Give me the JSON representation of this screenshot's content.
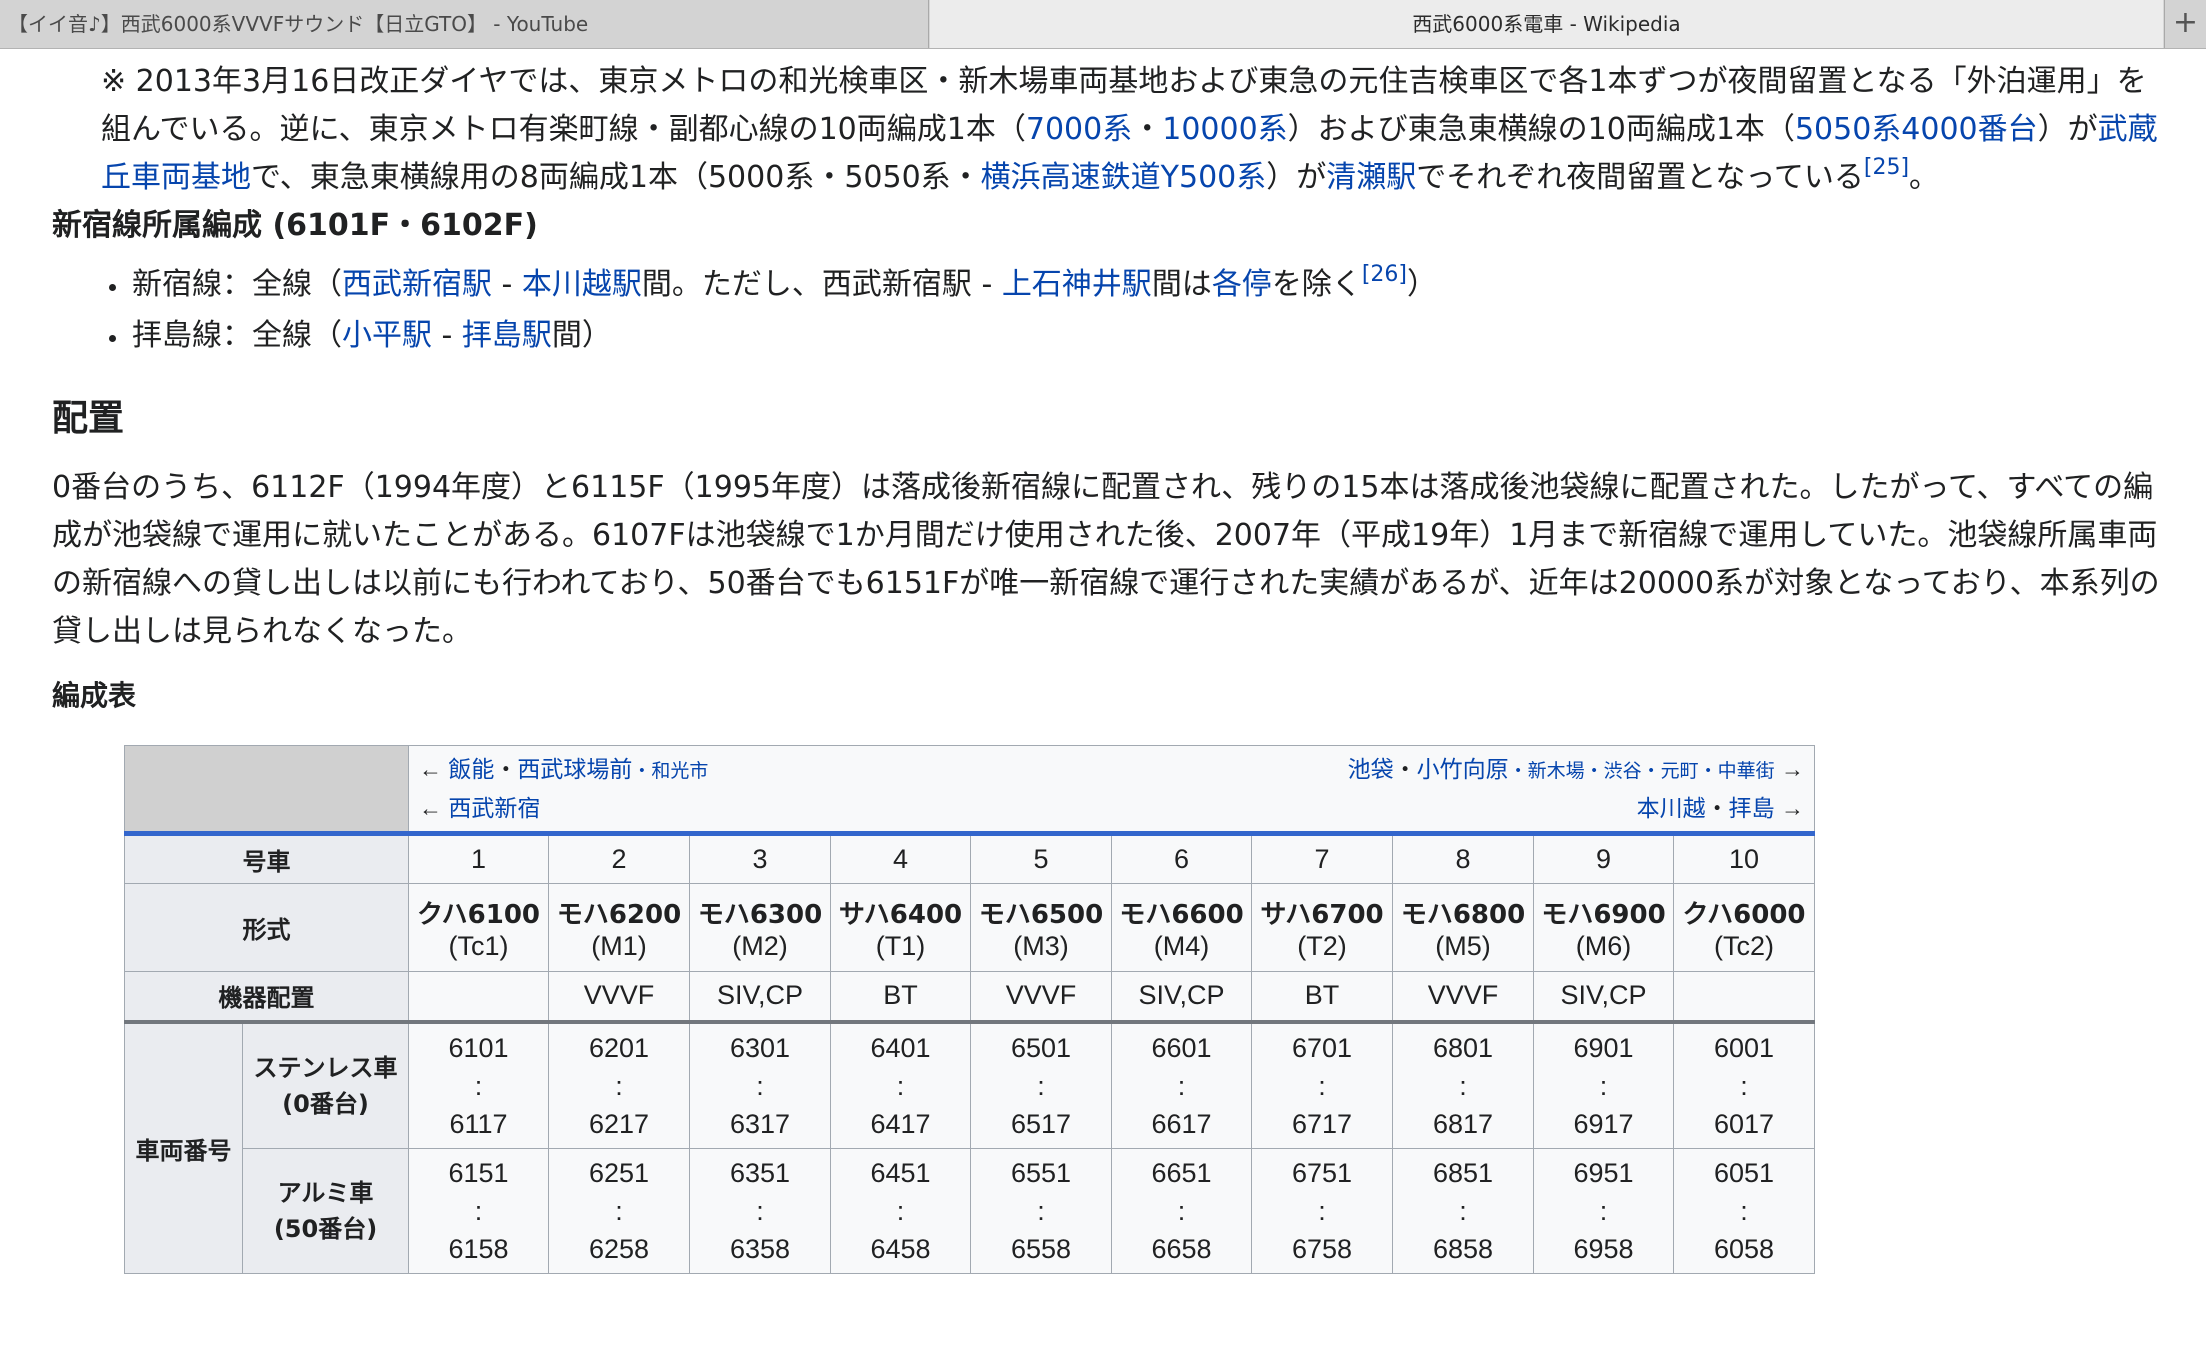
{
  "browser": {
    "tabs": [
      {
        "title": "【イイ音♪】西武6000系VVVFサウンド【日立GTO】 - YouTube"
      },
      {
        "title": "西武6000系電車 - Wikipedia"
      }
    ],
    "new_tab_label": "+"
  },
  "article": {
    "note": {
      "p1": "※ 2013年3月16日改正ダイヤでは、東京メトロの和光検車区・新木場車両基地および東急の元住吉検車区で各1本ずつが夜間留置となる「外泊運用」を組んでいる。逆に、東京メトロ有楽町線・副都心線の10両編成1本（",
      "l1": "7000系",
      "p2": "・",
      "l2": "10000系",
      "p3": "）および東急東横線の10両編成1本（",
      "l3": "5050系4000番台",
      "p4": "）が",
      "l4": "武蔵丘車両基地",
      "p5": "で、東急東横線用の8両編成1本（5000系・5050系・",
      "l5": "横浜高速鉄道Y500系",
      "p6": "）が",
      "l6": "清瀬駅",
      "p7": "でそれぞれ夜間留置となっている",
      "ref": "[25]",
      "p8": "。"
    },
    "shinjuku_heading": "新宿線所属編成 (6101F・6102F)",
    "lines": [
      {
        "a": "新宿線：全線（",
        "l1": "西武新宿駅",
        "b": " - ",
        "l2": "本川越駅",
        "c": "間。ただし、西武新宿駅 - ",
        "l3": "上石神井駅",
        "d": "間は",
        "l4": "各停",
        "e": "を除く",
        "ref": "[26]",
        "f": "）"
      },
      {
        "a": "拝島線：全線（",
        "l1": "小平駅",
        "b": " - ",
        "l2": "拝島駅",
        "c": "間）"
      }
    ],
    "haichi_heading": "配置",
    "haichi_text": "0番台のうち、6112F（1994年度）と6115F（1995年度）は落成後新宿線に配置され、残りの15本は落成後池袋線に配置された。したがって、すべての編成が池袋線で運用に就いたことがある。6107Fは池袋線で1か月間だけ使用された後、2007年（平成19年）1月まで新宿線で運用していた。池袋線所属車両の新宿線への貸し出しは以前にも行われており、50番台でも6151Fが唯一新宿線で運行された実績があるが、近年は20000系が対象となっており、本系列の貸し出しは見られなくなった。",
    "formation_heading": "編成表"
  },
  "table": {
    "dir_left1": {
      "arrow": "← ",
      "a": "飯能",
      "dot": "・",
      "b": "西武球場前",
      "small": "・和光市"
    },
    "dir_left2": {
      "arrow": "← ",
      "a": "西武新宿"
    },
    "dir_right1": {
      "a": "池袋",
      "dot": "・",
      "b": "小竹向原",
      "small": "・新木場・渋谷・元町・中華街",
      "arrow": " →"
    },
    "dir_right2": {
      "a": "本川越",
      "dot": "・",
      "b": "拝島",
      "arrow": " →"
    },
    "row_car": "号車",
    "row_type": "形式",
    "row_equip": "機器配置",
    "row_number": "車両番号",
    "row_stainless": "ステンレス車\n(0番台)",
    "row_alumi": "アルミ車\n(50番台)",
    "cars": [
      {
        "no": "1",
        "type": "クハ6100",
        "code": "(Tc1)",
        "equip": "",
        "s1": "6101",
        "s2": "6117",
        "a1": "6151",
        "a2": "6158"
      },
      {
        "no": "2",
        "type": "モハ6200",
        "code": "(M1)",
        "equip": "VVVF",
        "s1": "6201",
        "s2": "6217",
        "a1": "6251",
        "a2": "6258"
      },
      {
        "no": "3",
        "type": "モハ6300",
        "code": "(M2)",
        "equip": "SIV,CP",
        "s1": "6301",
        "s2": "6317",
        "a1": "6351",
        "a2": "6358"
      },
      {
        "no": "4",
        "type": "サハ6400",
        "code": "(T1)",
        "equip": "BT",
        "s1": "6401",
        "s2": "6417",
        "a1": "6451",
        "a2": "6458"
      },
      {
        "no": "5",
        "type": "モハ6500",
        "code": "(M3)",
        "equip": "VVVF",
        "s1": "6501",
        "s2": "6517",
        "a1": "6551",
        "a2": "6558"
      },
      {
        "no": "6",
        "type": "モハ6600",
        "code": "(M4)",
        "equip": "SIV,CP",
        "s1": "6601",
        "s2": "6617",
        "a1": "6651",
        "a2": "6658"
      },
      {
        "no": "7",
        "type": "サハ6700",
        "code": "(T2)",
        "equip": "BT",
        "s1": "6701",
        "s2": "6717",
        "a1": "6751",
        "a2": "6758"
      },
      {
        "no": "8",
        "type": "モハ6800",
        "code": "(M5)",
        "equip": "VVVF",
        "s1": "6801",
        "s2": "6817",
        "a1": "6851",
        "a2": "6858"
      },
      {
        "no": "9",
        "type": "モハ6900",
        "code": "(M6)",
        "equip": "SIV,CP",
        "s1": "6901",
        "s2": "6917",
        "a1": "6951",
        "a2": "6958"
      },
      {
        "no": "10",
        "type": "クハ6000",
        "code": "(Tc2)",
        "equip": "",
        "s1": "6001",
        "s2": "6017",
        "a1": "6051",
        "a2": "6058"
      }
    ],
    "range_sep": ":"
  },
  "colors": {
    "link": "#0645ad",
    "header_bg": "#eaecf0",
    "cell_bg": "#f8f9fa",
    "accent_rule": "#3366cc"
  }
}
